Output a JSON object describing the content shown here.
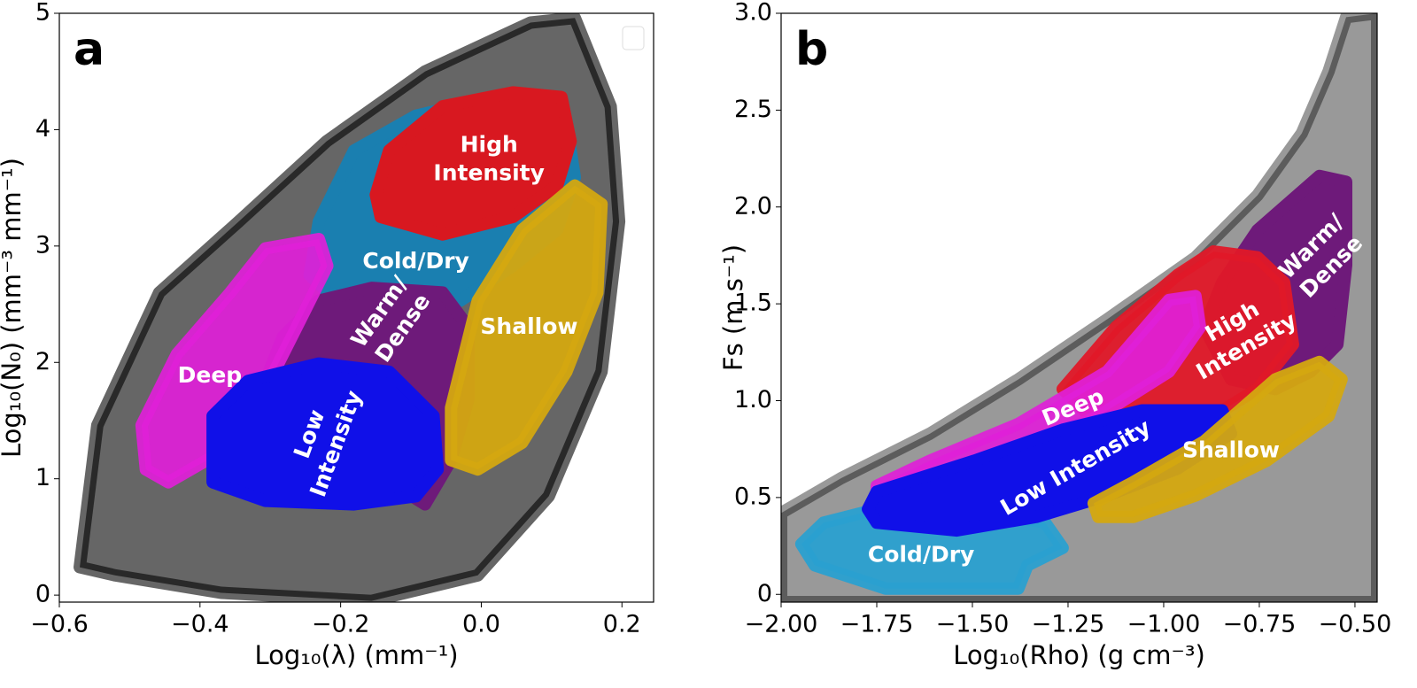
{
  "chart_data": [
    {
      "type": "scatter",
      "panel_label": "a",
      "xlabel": "Log₁₀(λ) (mm⁻¹)",
      "ylabel": "Log₁₀(N₀) (mm⁻³ mm⁻¹)",
      "xlim": [
        -0.6,
        0.245
      ],
      "ylim": [
        -0.06,
        5
      ],
      "xticks": [
        {
          "value": -0.6,
          "label": "−0.6"
        },
        {
          "value": -0.4,
          "label": "−0.4"
        },
        {
          "value": -0.2,
          "label": "−0.2"
        },
        {
          "value": 0.0,
          "label": "0.0"
        },
        0.2
      ],
      "yticks": [
        0,
        1,
        2,
        3,
        4,
        5
      ],
      "regions": [
        {
          "color": "#000000",
          "opacity": 0.6,
          "x": [
            -0.571,
            -0.546,
            -0.458,
            -0.345,
            -0.22,
            -0.08,
            0.07,
            0.133,
            0.184,
            0.196,
            0.171,
            0.096,
            -0.005,
            -0.156,
            -0.37,
            -0.521
          ],
          "y": [
            0.24,
            1.46,
            2.6,
            3.21,
            3.9,
            4.5,
            4.92,
            4.96,
            4.2,
            3.21,
            1.92,
            0.85,
            0.17,
            -0.05,
            0.02,
            0.17
          ]
        },
        {
          "label": [
            "Cold/Dry"
          ],
          "color": "#1a7fb0",
          "opacity": 1,
          "label_x": -0.093,
          "label_y": 2.86,
          "x": [
            -0.231,
            -0.181,
            -0.093,
            0.02,
            0.121,
            0.133,
            0.108,
            0.045,
            -0.03,
            -0.131,
            -0.206,
            -0.244
          ],
          "y": [
            3.21,
            3.82,
            4.12,
            4.28,
            4.05,
            3.59,
            3.14,
            2.83,
            2.53,
            2.6,
            2.53,
            2.75
          ]
        },
        {
          "label": [
            "High",
            "Intensity"
          ],
          "color": "#d81820",
          "opacity": 1,
          "label_x": 0.011,
          "label_y": 3.74,
          "x": [
            -0.15,
            -0.131,
            -0.055,
            0.045,
            0.114,
            0.127,
            0.108,
            0.045,
            -0.055,
            -0.143
          ],
          "y": [
            3.44,
            3.82,
            4.2,
            4.32,
            4.28,
            3.9,
            3.52,
            3.25,
            3.1,
            3.25
          ]
        },
        {
          "label": [
            "Warm/",
            "Dense"
          ],
          "color": "#6e1a7a",
          "opacity": 1,
          "label_x": -0.127,
          "label_y": 2.36,
          "x": [
            -0.282,
            -0.231,
            -0.156,
            -0.055,
            -0.018,
            -0.018,
            -0.043,
            -0.08,
            -0.181,
            -0.269,
            -0.307
          ],
          "y": [
            2.22,
            2.53,
            2.64,
            2.6,
            2.3,
            1.69,
            1.16,
            0.78,
            1.16,
            1.54,
            1.84
          ]
        },
        {
          "label": [
            "Deep"
          ],
          "color": "#e020d8",
          "opacity": 0.92,
          "label_x": -0.386,
          "label_y": 1.88,
          "x": [
            -0.483,
            -0.433,
            -0.357,
            -0.307,
            -0.231,
            -0.219,
            -0.257,
            -0.307,
            -0.37,
            -0.445,
            -0.477
          ],
          "y": [
            1.46,
            2.07,
            2.6,
            2.98,
            3.06,
            2.83,
            2.37,
            1.77,
            1.23,
            0.97,
            1.08
          ]
        },
        {
          "label": [
            "Low",
            "Intensity"
          ],
          "color": "#1010e8",
          "opacity": 1,
          "label_x": -0.224,
          "label_y": 1.34,
          "x": [
            -0.382,
            -0.332,
            -0.231,
            -0.131,
            -0.068,
            -0.062,
            -0.093,
            -0.181,
            -0.307,
            -0.382
          ],
          "y": [
            1.54,
            1.84,
            1.99,
            1.92,
            1.54,
            1.08,
            0.85,
            0.78,
            0.81,
            0.97
          ]
        },
        {
          "label": [
            "Shallow"
          ],
          "color": "#d4a810",
          "opacity": 0.95,
          "label_x": 0.068,
          "label_y": 2.3,
          "x": [
            -0.043,
            -0.005,
            0.058,
            0.133,
            0.171,
            0.165,
            0.121,
            0.058,
            -0.005,
            -0.043
          ],
          "y": [
            1.61,
            2.53,
            3.14,
            3.52,
            3.36,
            2.6,
            1.92,
            1.31,
            1.08,
            1.16
          ]
        }
      ]
    },
    {
      "type": "scatter",
      "panel_label": "b",
      "xlabel": "Log₁₀(Rho) (g cm⁻³)",
      "ylabel": "Fs (m s⁻¹)",
      "xlim": [
        -2.0,
        -0.442
      ],
      "ylim": [
        -0.04,
        3.0
      ],
      "xticks": [
        {
          "value": -2.0,
          "label": "−2.00"
        },
        {
          "value": -1.75,
          "label": "−1.75"
        },
        {
          "value": -1.5,
          "label": "−1.50"
        },
        {
          "value": -1.25,
          "label": "−1.25"
        },
        {
          "value": -1.0,
          "label": "−1.00"
        },
        {
          "value": -0.75,
          "label": "−0.75"
        },
        {
          "value": -0.5,
          "label": "−0.50"
        }
      ],
      "yticks": [
        0,
        0.5,
        {
          "value": 1.0,
          "label": "1.0"
        },
        1.5,
        {
          "value": 2.0,
          "label": "2.0"
        },
        2.5,
        {
          "value": 3.0,
          "label": "3.0"
        }
      ],
      "regions": [
        {
          "color": "#000000",
          "opacity": 0.4,
          "x": [
            -2.0,
            -1.843,
            -1.611,
            -1.38,
            -1.148,
            -0.917,
            -0.755,
            -0.639,
            -0.569,
            -0.523,
            -0.442,
            -0.442,
            -2.0
          ],
          "y": [
            0.42,
            0.6,
            0.83,
            1.11,
            1.42,
            1.74,
            2.06,
            2.38,
            2.7,
            2.98,
            3.0,
            -0.04,
            -0.04
          ]
        },
        {
          "label": [
            "Cold/Dry"
          ],
          "color": "#2aa0d0",
          "opacity": 0.95,
          "label_x": -1.634,
          "label_y": 0.2,
          "x": [
            -1.947,
            -1.889,
            -1.75,
            -1.495,
            -1.31,
            -1.264,
            -1.356,
            -1.38,
            -1.727,
            -1.912
          ],
          "y": [
            0.26,
            0.37,
            0.44,
            0.44,
            0.37,
            0.24,
            0.15,
            0.03,
            0.03,
            0.15
          ]
        },
        {
          "label": [
            "Warm/",
            "Dense"
          ],
          "color": "#6e1a7a",
          "opacity": 1,
          "label_x": -0.586,
          "label_y": 1.74,
          "x": [
            -0.847,
            -0.755,
            -0.593,
            -0.523,
            -0.523,
            -0.546,
            -0.616,
            -0.708,
            -0.824,
            -0.894
          ],
          "y": [
            1.61,
            1.88,
            2.16,
            2.13,
            1.7,
            1.29,
            1.15,
            1.06,
            1.11,
            1.38
          ]
        },
        {
          "label": [
            "High",
            "Intensity"
          ],
          "color": "#e01828",
          "opacity": 0.95,
          "label_x": -0.801,
          "label_y": 1.34,
          "x": [
            -1.264,
            -1.125,
            -0.963,
            -0.87,
            -0.755,
            -0.685,
            -0.662,
            -0.755,
            -0.87,
            -1.032,
            -1.194
          ],
          "y": [
            1.06,
            1.38,
            1.65,
            1.77,
            1.74,
            1.61,
            1.29,
            1.06,
            0.92,
            0.92,
            0.92
          ]
        },
        {
          "label": [
            "Deep"
          ],
          "color": "#e020d8",
          "opacity": 0.92,
          "label_x": -1.236,
          "label_y": 0.96,
          "x": [
            -1.75,
            -1.611,
            -1.38,
            -1.148,
            -0.986,
            -0.917,
            -0.905,
            -0.986,
            -1.171,
            -1.38,
            -1.611,
            -1.75
          ],
          "y": [
            0.56,
            0.69,
            0.88,
            1.15,
            1.52,
            1.54,
            1.38,
            1.15,
            0.92,
            0.74,
            0.58,
            0.49
          ]
        },
        {
          "label": [
            "Low Intensity"
          ],
          "color": "#1010e8",
          "opacity": 1,
          "label_x": -1.229,
          "label_y": 0.65,
          "x": [
            -1.773,
            -1.75,
            -1.495,
            -1.264,
            -1.056,
            -0.847,
            -0.824,
            -0.963,
            -1.148,
            -1.333,
            -1.542,
            -1.75
          ],
          "y": [
            0.44,
            0.53,
            0.69,
            0.85,
            0.95,
            0.95,
            0.83,
            0.65,
            0.51,
            0.4,
            0.33,
            0.37
          ]
        },
        {
          "label": [
            "Shallow"
          ],
          "color": "#d4a810",
          "opacity": 0.95,
          "label_x": -0.824,
          "label_y": 0.74,
          "x": [
            -1.183,
            -1.079,
            -0.894,
            -0.708,
            -0.593,
            -0.535,
            -0.569,
            -0.731,
            -0.917,
            -1.079,
            -1.171
          ],
          "y": [
            0.47,
            0.58,
            0.79,
            1.11,
            1.2,
            1.11,
            0.92,
            0.69,
            0.51,
            0.4,
            0.4
          ]
        }
      ]
    }
  ]
}
